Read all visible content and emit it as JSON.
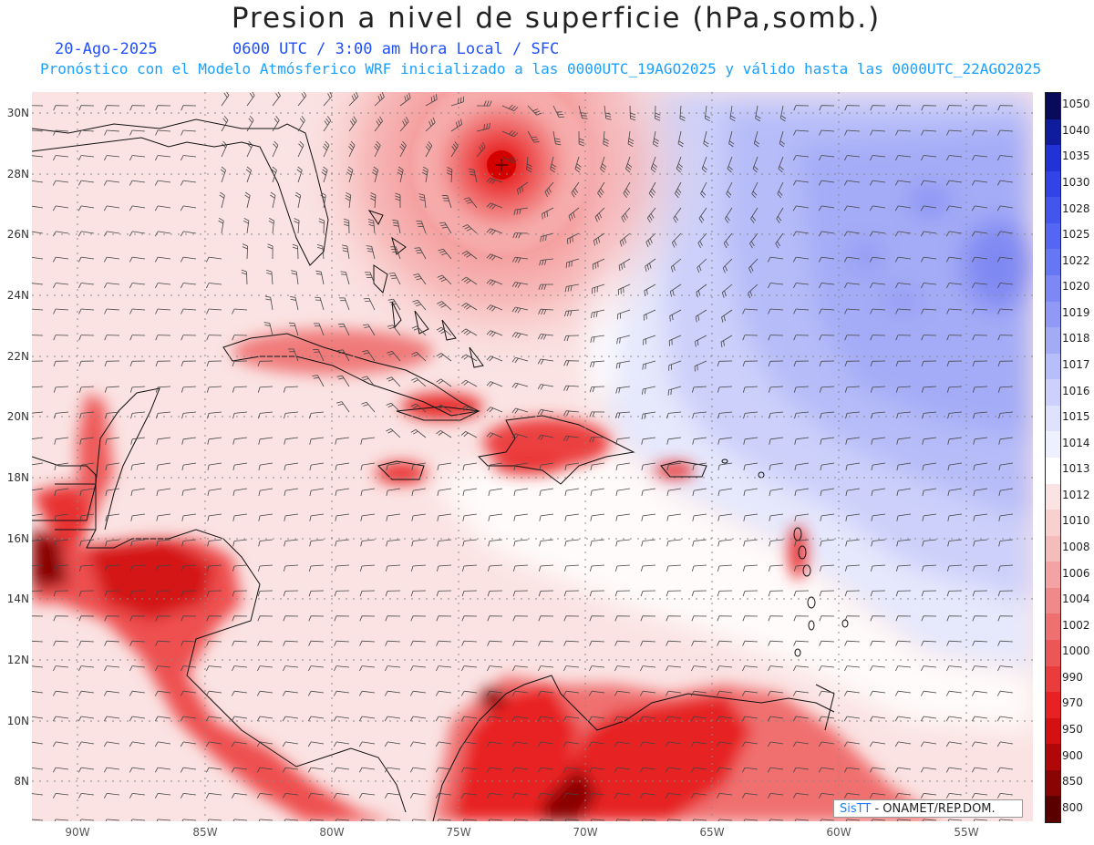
{
  "header": {
    "title": "Presion a nivel de superficie (hPa,somb.)",
    "date": "20-Ago-2025",
    "time_label": "0600 UTC / 3:00 am Hora Local / SFC",
    "forecast_label": "Pronóstico con el Modelo Atmósferico WRF inicializado a las 0000UTC_19AGO2025 y válido hasta las  0000UTC_22AGO2025"
  },
  "axes": {
    "lat_labels": [
      "30N",
      "28N",
      "26N",
      "24N",
      "22N",
      "20N",
      "18N",
      "16N",
      "14N",
      "12N",
      "10N",
      "8N"
    ],
    "lon_labels": [
      "90W",
      "85W",
      "80W",
      "75W",
      "70W",
      "65W",
      "60W",
      "55W"
    ]
  },
  "colorbar": {
    "labels": [
      "1050",
      "1040",
      "1035",
      "1030",
      "1028",
      "1025",
      "1022",
      "1020",
      "1019",
      "1018",
      "1017",
      "1016",
      "1015",
      "1014",
      "1013",
      "1012",
      "1010",
      "1008",
      "1006",
      "1004",
      "1002",
      "1000",
      "990",
      "970",
      "950",
      "900",
      "850",
      "800"
    ],
    "colors": [
      "#0a0a5a",
      "#0f1c9c",
      "#2233d6",
      "#3344e6",
      "#4455ee",
      "#5566f2",
      "#6677f4",
      "#7d88f5",
      "#9099f6",
      "#a3abf7",
      "#b8beF9",
      "#ccd0fa",
      "#dfe2fc",
      "#eef0fd",
      "#ffffff",
      "#fbe3e3",
      "#f8d0d0",
      "#f5bcbc",
      "#f3a3a3",
      "#f08a8a",
      "#ee7070",
      "#ec5656",
      "#ea3c3c",
      "#e82222",
      "#d41010",
      "#b00808",
      "#8a0404",
      "#5a0000"
    ]
  },
  "credit": {
    "brand": "SisTT",
    "org": "- ONAMET/REP.DOM."
  },
  "map_features": {
    "hurricane_center": "28.3N 73.3W",
    "regions": [
      "high-pressure-atlantic",
      "low-pressure-central-america",
      "low-pressure-south-america",
      "hurricane-low"
    ]
  }
}
